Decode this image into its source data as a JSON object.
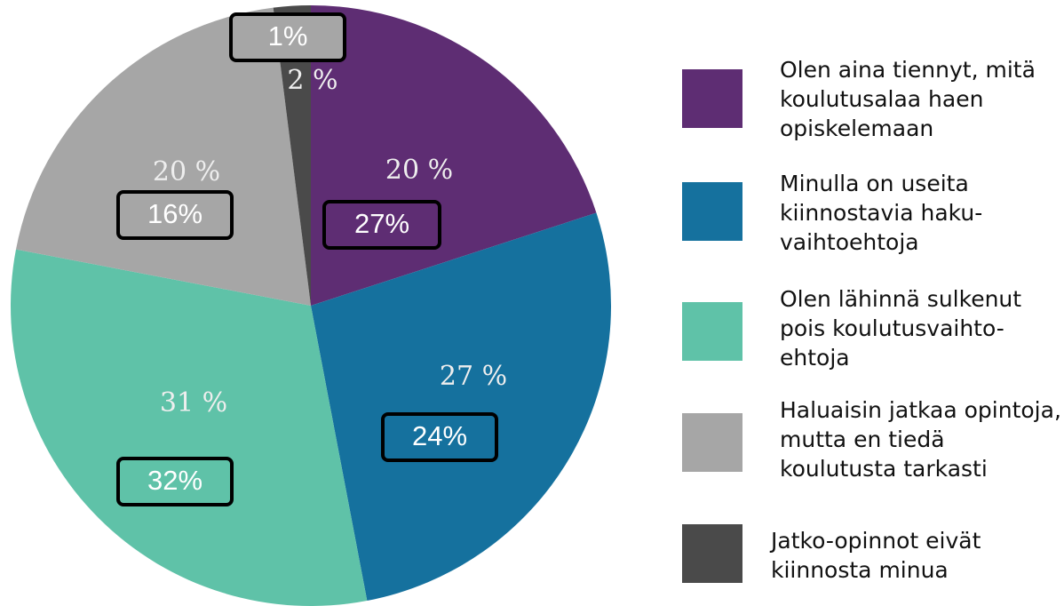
{
  "chart_data": {
    "type": "pie",
    "categories": [
      "Olen aina tiennyt, mitä koulutusalaa haen opiskelemaan",
      "Minulla on useita kiinnostavia haku-vaihtoehtoja",
      "Olen lähinnä sulkenut pois koulutusvaihto-ehtoja",
      "Haluaisin jatkaa opintoja, mutta en tiedä koulutusta tarkasti",
      "Jatko-opinnot eivät kiinnosta minua"
    ],
    "values": [
      20,
      27,
      31,
      20,
      2
    ],
    "value_labels": [
      "20 %",
      "27 %",
      "31 %",
      "20 %",
      "2 %"
    ],
    "colors": [
      "#5e2d73",
      "#15719e",
      "#5fc2a8",
      "#a6a6a6",
      "#4a4a4a"
    ],
    "annotations": [
      "27%",
      "24%",
      "32%",
      "16%",
      "1%"
    ]
  }
}
